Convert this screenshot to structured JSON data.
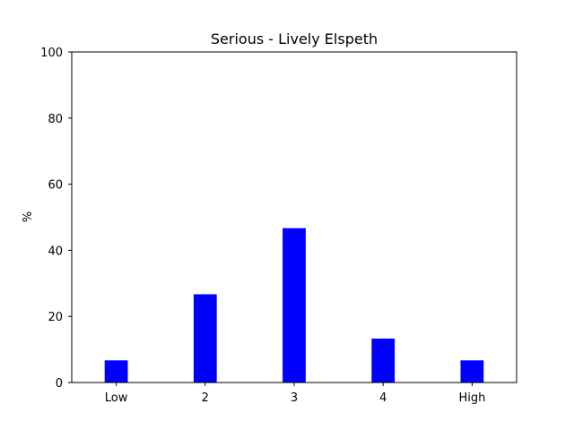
{
  "chart_data": {
    "type": "bar",
    "title": "Serious - Lively Elspeth",
    "xlabel": "",
    "ylabel": "%",
    "categories": [
      "Low",
      "2",
      "3",
      "4",
      "High"
    ],
    "values": [
      6.7,
      26.7,
      46.7,
      13.3,
      6.7
    ],
    "ylim": [
      0,
      100
    ],
    "yticks": [
      0,
      20,
      40,
      60,
      80,
      100
    ],
    "grid": false,
    "bar_color": "#0000ff"
  }
}
